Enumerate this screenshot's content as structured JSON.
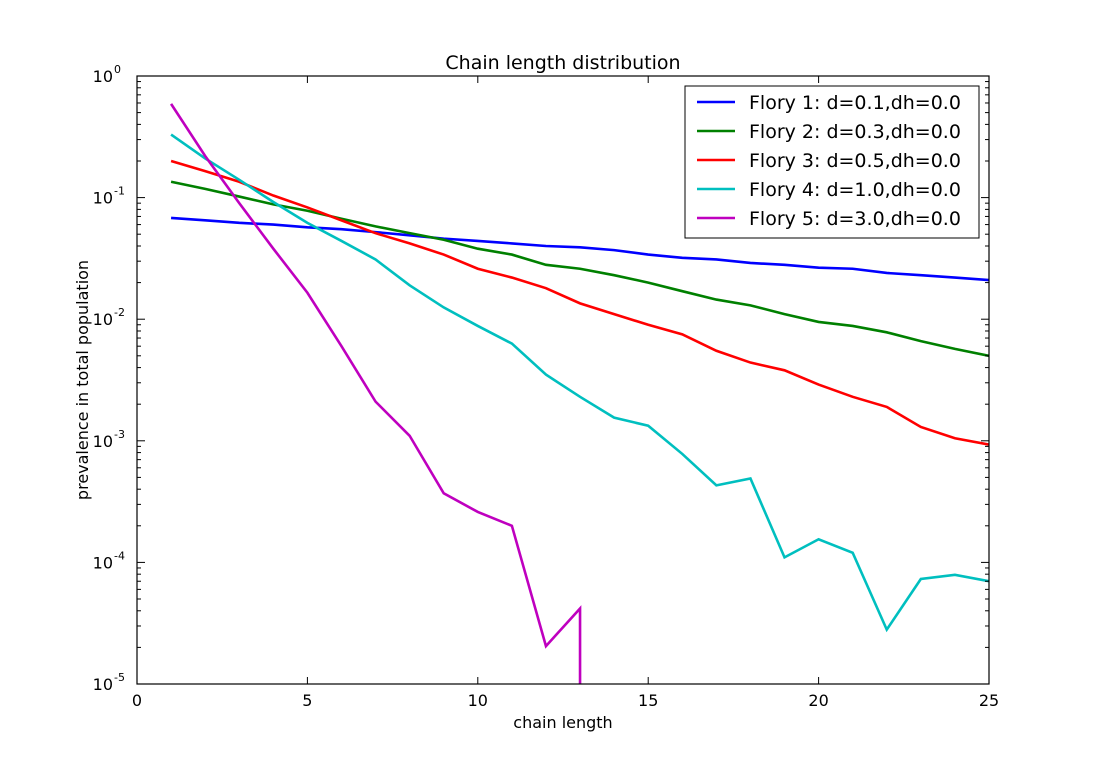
{
  "chart_data": {
    "type": "line",
    "title": "Chain length distribution",
    "xlabel": "chain length",
    "ylabel": "prevalence in total population",
    "xlim": [
      0,
      25
    ],
    "ylim": [
      1e-05,
      1
    ],
    "yscale": "log",
    "xticks": [
      0,
      5,
      10,
      15,
      20,
      25
    ],
    "xtick_labels": [
      "0",
      "5",
      "10",
      "15",
      "20",
      "25"
    ],
    "yticks": [
      {
        "value": 1e-05,
        "base": "10",
        "exp": "-5"
      },
      {
        "value": 0.0001,
        "base": "10",
        "exp": "-4"
      },
      {
        "value": 0.001,
        "base": "10",
        "exp": "-3"
      },
      {
        "value": 0.01,
        "base": "10",
        "exp": "-2"
      },
      {
        "value": 0.1,
        "base": "10",
        "exp": "-1"
      },
      {
        "value": 1,
        "base": "10",
        "exp": "0"
      }
    ],
    "legend_position": "top-right",
    "grid": false,
    "series": [
      {
        "name": "Flory 1: d=0.1,dh=0.0",
        "color": "#0000ff",
        "x": [
          1,
          2,
          3,
          4,
          5,
          6,
          7,
          8,
          9,
          10,
          11,
          12,
          13,
          14,
          15,
          16,
          17,
          18,
          19,
          20,
          21,
          22,
          23,
          24,
          25
        ],
        "y": [
          0.068,
          0.065,
          0.062,
          0.06,
          0.057,
          0.055,
          0.052,
          0.049,
          0.046,
          0.044,
          0.042,
          0.04,
          0.039,
          0.037,
          0.034,
          0.032,
          0.031,
          0.029,
          0.028,
          0.0265,
          0.026,
          0.024,
          0.023,
          0.022,
          0.021
        ]
      },
      {
        "name": "Flory 2: d=0.3,dh=0.0",
        "color": "#008000",
        "x": [
          1,
          2,
          3,
          4,
          5,
          6,
          7,
          8,
          9,
          10,
          11,
          12,
          13,
          14,
          15,
          16,
          17,
          18,
          19,
          20,
          21,
          22,
          23,
          24,
          25
        ],
        "y": [
          0.135,
          0.118,
          0.102,
          0.088,
          0.078,
          0.067,
          0.058,
          0.051,
          0.045,
          0.038,
          0.034,
          0.028,
          0.026,
          0.023,
          0.02,
          0.017,
          0.0145,
          0.013,
          0.011,
          0.0095,
          0.0088,
          0.0078,
          0.0066,
          0.0057,
          0.005
        ]
      },
      {
        "name": "Flory 3: d=0.5,dh=0.0",
        "color": "#ff0000",
        "x": [
          1,
          2,
          3,
          4,
          5,
          6,
          7,
          8,
          9,
          10,
          11,
          12,
          13,
          14,
          15,
          16,
          17,
          18,
          19,
          20,
          21,
          22,
          23,
          24,
          25
        ],
        "y": [
          0.2,
          0.165,
          0.135,
          0.104,
          0.083,
          0.065,
          0.051,
          0.042,
          0.034,
          0.026,
          0.022,
          0.018,
          0.0135,
          0.011,
          0.009,
          0.0075,
          0.0055,
          0.0044,
          0.0038,
          0.0029,
          0.0023,
          0.0019,
          0.0013,
          0.00105,
          0.00093
        ]
      },
      {
        "name": "Flory 4: d=1.0,dh=0.0",
        "color": "#00bfbf",
        "x": [
          1,
          2,
          3,
          4,
          5,
          6,
          7,
          8,
          9,
          10,
          11,
          12,
          13,
          14,
          15,
          16,
          17,
          18,
          19,
          20,
          21,
          22,
          23,
          24,
          25
        ],
        "y": [
          0.33,
          0.21,
          0.14,
          0.092,
          0.062,
          0.044,
          0.031,
          0.019,
          0.0125,
          0.0088,
          0.0063,
          0.0035,
          0.0023,
          0.00155,
          0.00133,
          0.00078,
          0.00043,
          0.00049,
          0.00011,
          0.000155,
          0.00012,
          2.8e-05,
          7.3e-05,
          7.9e-05,
          7e-05
        ]
      },
      {
        "name": "Flory 5: d=3.0,dh=0.0",
        "color": "#bf00bf",
        "x": [
          1,
          2,
          3,
          4,
          5,
          6,
          7,
          8,
          9,
          10,
          11,
          12,
          13,
          13
        ],
        "y": [
          0.59,
          0.22,
          0.09,
          0.038,
          0.0165,
          0.006,
          0.0021,
          0.0011,
          0.00037,
          0.00026,
          0.0002,
          2.05e-05,
          4.18e-05,
          1e-05
        ]
      }
    ]
  }
}
